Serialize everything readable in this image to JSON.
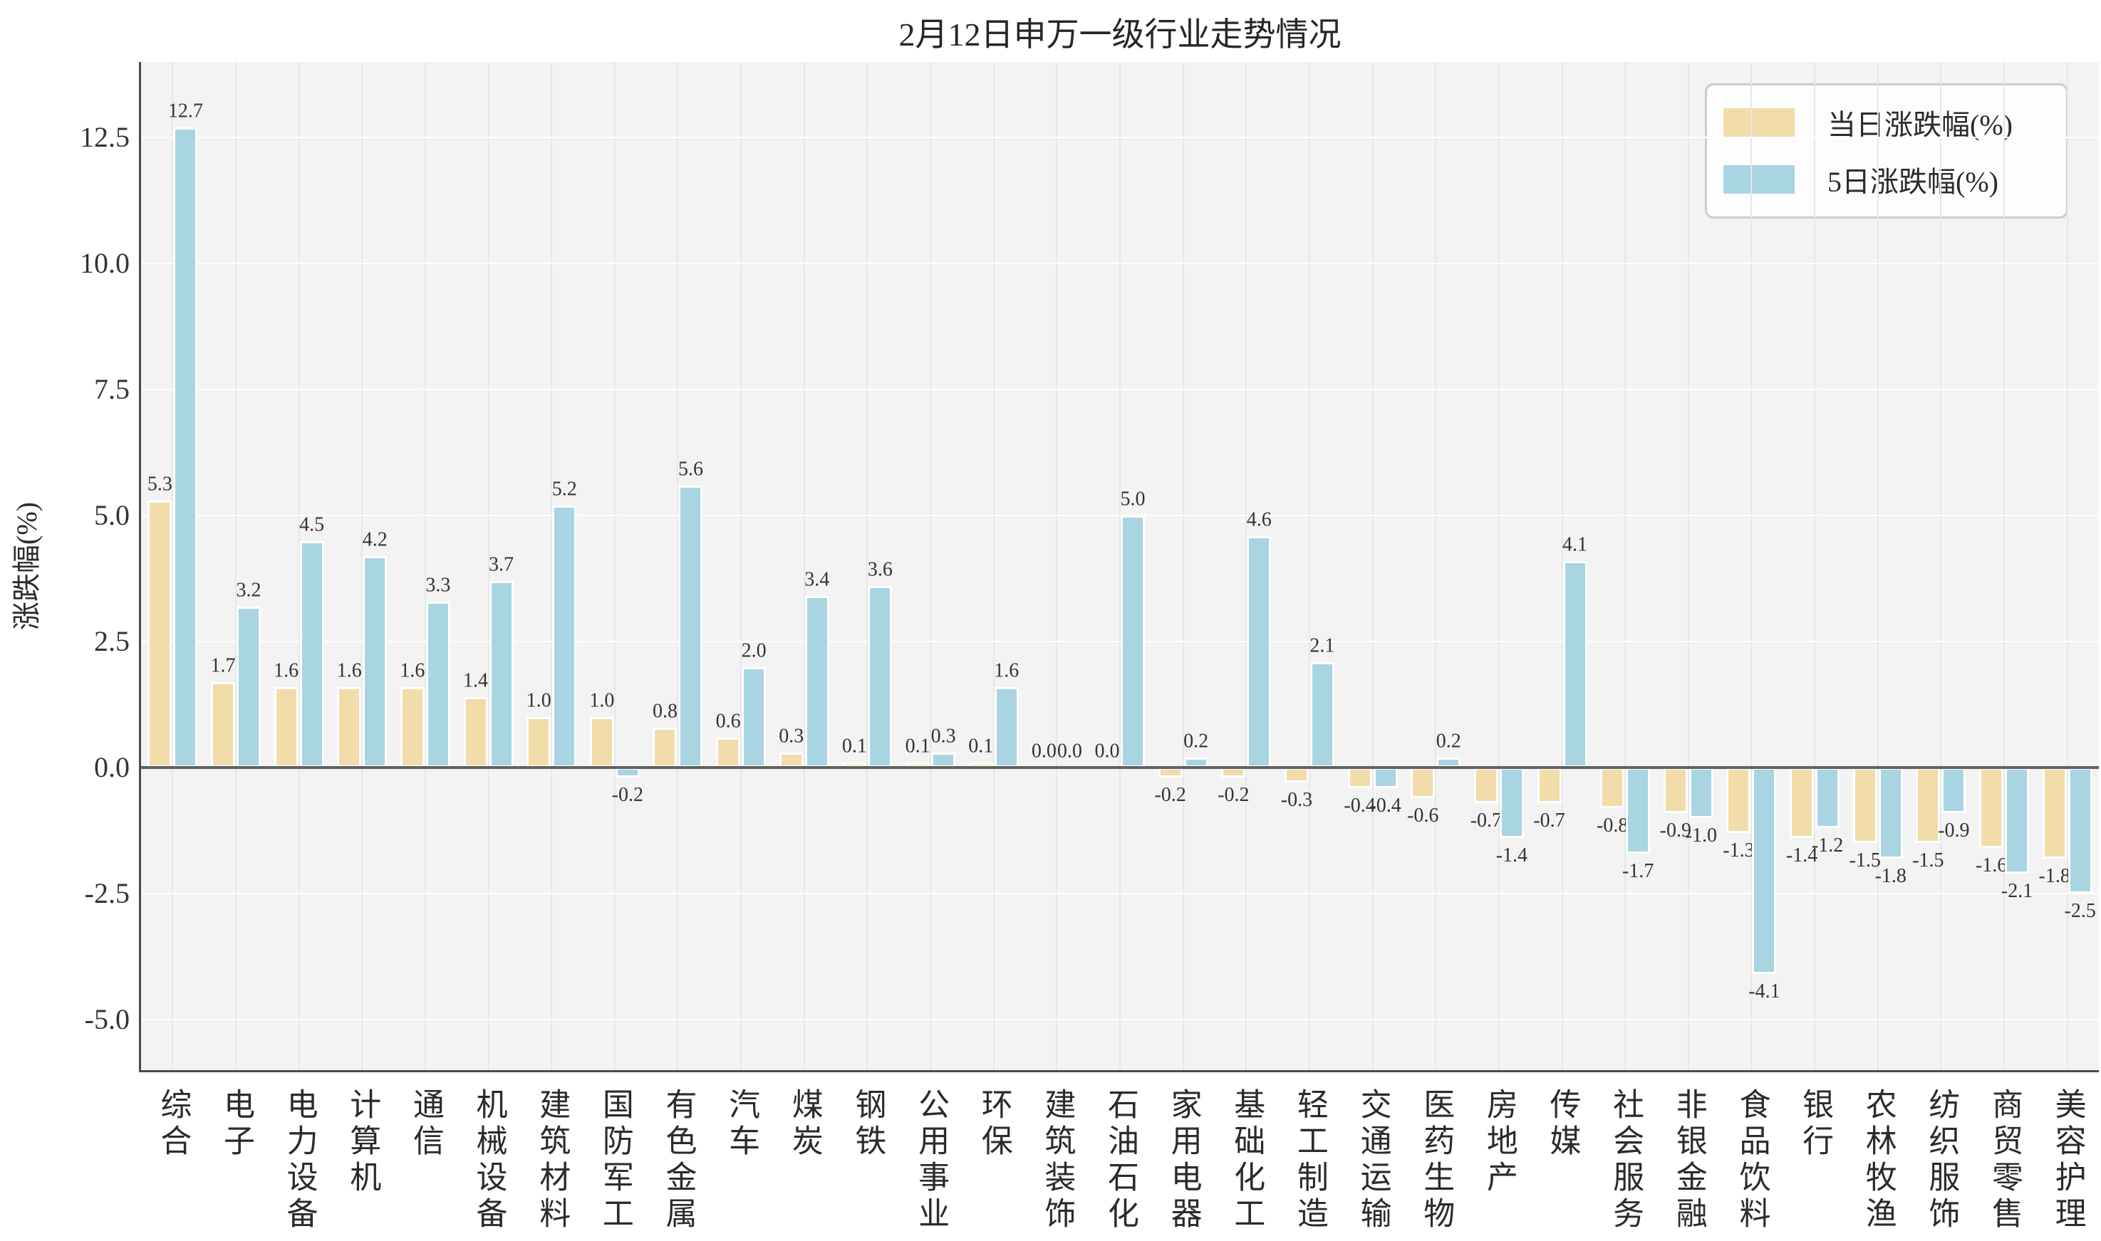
{
  "title": "2月12日申万一级行业走势情况",
  "colors": {
    "daily_bar": "#f1dcaa",
    "five_day_bar": "#a9d4e2",
    "bar_edge": "#ffffff",
    "plot_background": "#f3f3f3",
    "figure_background": "#ffffff",
    "zero_line": "#616161",
    "spine": "#4a4a4a",
    "horizontal_grid": "#ffffff",
    "vertical_grid": "#e7e7e7",
    "legend_border": "#cccccc",
    "text": "#2b2b2b"
  },
  "legend": {
    "items": [
      {
        "label": "当日涨跌幅(%)",
        "color": "#f1dcaa"
      },
      {
        "label": "5日涨跌幅(%)",
        "color": "#a9d4e2"
      }
    ],
    "position": "upper right"
  },
  "chart_data": {
    "type": "bar",
    "title": "2月12日申万一级行业走势情况",
    "xlabel": "",
    "ylabel": "涨跌幅(%)",
    "ylim": [
      -6,
      14
    ],
    "yticks": [
      12.5,
      10.0,
      7.5,
      5.0,
      2.5,
      0.0,
      -2.5,
      -5.0
    ],
    "grid": true,
    "legend_position": "upper right",
    "bar_value_labels": true,
    "categories": [
      "综合",
      "电子",
      "电力设备",
      "计算机",
      "通信",
      "机械设备",
      "建筑材料",
      "国防军工",
      "有色金属",
      "汽车",
      "煤炭",
      "钢铁",
      "公用事业",
      "环保",
      "建筑装饰",
      "石油石化",
      "家用电器",
      "基础化工",
      "轻工制造",
      "交通运输",
      "医药生物",
      "房地产",
      "传媒",
      "社会服务",
      "非银金融",
      "食品饮料",
      "银行",
      "农林牧渔",
      "纺织服饰",
      "商贸零售",
      "美容护理"
    ],
    "series": [
      {
        "name": "当日涨跌幅(%)",
        "color": "#f1dcaa",
        "values": [
          5.3,
          1.7,
          1.6,
          1.6,
          1.6,
          1.4,
          1.0,
          1.0,
          0.8,
          0.6,
          0.3,
          0.1,
          0.1,
          0.1,
          0.0,
          0.0,
          -0.2,
          -0.2,
          -0.3,
          -0.4,
          -0.6,
          -0.7,
          -0.7,
          -0.8,
          -0.9,
          -1.3,
          -1.4,
          -1.5,
          -1.5,
          -1.6,
          -1.8
        ]
      },
      {
        "name": "5日涨跌幅(%)",
        "color": "#a9d4e2",
        "values": [
          12.7,
          3.2,
          4.5,
          4.2,
          3.3,
          3.7,
          5.2,
          -0.2,
          5.6,
          2.0,
          3.4,
          3.6,
          0.3,
          1.6,
          0.0,
          5.0,
          0.2,
          4.6,
          2.1,
          -0.4,
          0.2,
          -1.4,
          4.1,
          -1.7,
          -1.0,
          -4.1,
          -1.2,
          -1.8,
          -0.9,
          -2.1,
          -2.5
        ]
      }
    ]
  }
}
